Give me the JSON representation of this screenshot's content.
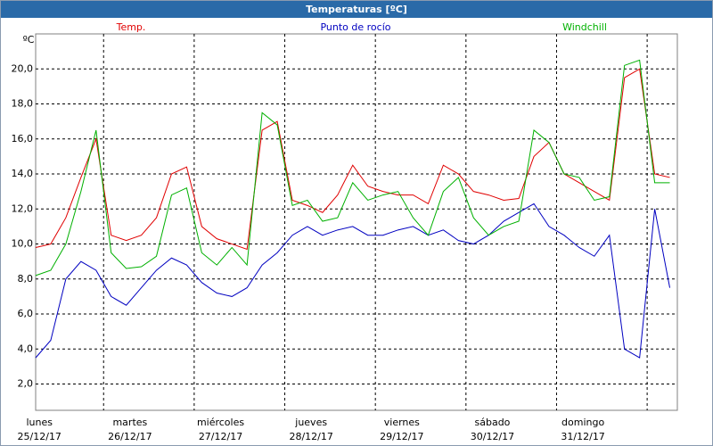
{
  "chart_data": {
    "type": "line",
    "title": "Temperaturas [ºC]",
    "y_unit": "ºC",
    "x": [
      0,
      4,
      8,
      12,
      16,
      20,
      24,
      28,
      32,
      36,
      40,
      44,
      48,
      52,
      56,
      60,
      64,
      68,
      72,
      76,
      80,
      84,
      88,
      92,
      96,
      100,
      104,
      108,
      112,
      116,
      120,
      124,
      128,
      132,
      136,
      140,
      144,
      148,
      152,
      156,
      160,
      164,
      168
    ],
    "xlim": [
      0,
      170
    ],
    "xticks": [
      {
        "value": 1,
        "label": "lunes"
      },
      {
        "value": 25,
        "label": "martes"
      },
      {
        "value": 49,
        "label": "miércoles"
      },
      {
        "value": 73,
        "label": "jueves"
      },
      {
        "value": 97,
        "label": "viernes"
      },
      {
        "value": 121,
        "label": "sábado"
      },
      {
        "value": 145,
        "label": "domingo"
      }
    ],
    "xtick_dates": [
      "25/12/17",
      "26/12/17",
      "27/12/17",
      "28/12/17",
      "29/12/17",
      "30/12/17",
      "31/12/17"
    ],
    "xgrid": [
      18,
      42,
      66,
      90,
      114,
      138,
      162
    ],
    "ylim": [
      0.5,
      22
    ],
    "yticks": [
      {
        "value": 2,
        "label": "2,0"
      },
      {
        "value": 4,
        "label": "4,0"
      },
      {
        "value": 6,
        "label": "6,0"
      },
      {
        "value": 8,
        "label": "8,0"
      },
      {
        "value": 10,
        "label": "10,0"
      },
      {
        "value": 12,
        "label": "12,0"
      },
      {
        "value": 14,
        "label": "14,0"
      },
      {
        "value": 16,
        "label": "16,0"
      },
      {
        "value": 18,
        "label": "18,0"
      },
      {
        "value": 20,
        "label": "20,0"
      }
    ],
    "grid": true,
    "series": [
      {
        "name": "Temp.",
        "color": "#e00000",
        "values": [
          9.8,
          10.0,
          11.5,
          13.8,
          16.0,
          10.5,
          10.2,
          10.5,
          11.5,
          14.0,
          14.4,
          11.0,
          10.3,
          10.0,
          9.7,
          16.5,
          17.0,
          12.5,
          12.2,
          11.8,
          12.8,
          14.5,
          13.3,
          13.0,
          12.8,
          12.8,
          12.3,
          14.5,
          14.0,
          13.0,
          12.8,
          12.5,
          12.6,
          15.0,
          15.8,
          14.0,
          13.5,
          13.0,
          12.5,
          19.5,
          20.0,
          14.0,
          13.8
        ]
      },
      {
        "name": "Punto de rocío",
        "color": "#0000c0",
        "values": [
          3.5,
          4.5,
          8.0,
          9.0,
          8.5,
          7.0,
          6.5,
          7.5,
          8.5,
          9.2,
          8.8,
          7.8,
          7.2,
          7.0,
          7.5,
          8.8,
          9.5,
          10.5,
          11.0,
          10.5,
          10.8,
          11.0,
          10.5,
          10.5,
          10.8,
          11.0,
          10.5,
          10.8,
          10.2,
          10.0,
          10.5,
          11.3,
          11.8,
          12.3,
          11.0,
          10.5,
          9.8,
          9.3,
          10.5,
          4.0,
          3.5,
          12.0,
          7.5
        ]
      },
      {
        "name": "Windchill",
        "color": "#00b000",
        "values": [
          8.2,
          8.5,
          10.0,
          13.0,
          16.5,
          9.5,
          8.6,
          8.7,
          9.3,
          12.8,
          13.2,
          9.5,
          8.8,
          9.8,
          8.8,
          17.5,
          16.8,
          12.2,
          12.5,
          11.3,
          11.5,
          13.5,
          12.5,
          12.8,
          13.0,
          11.5,
          10.5,
          13.0,
          13.8,
          11.5,
          10.5,
          11.0,
          11.3,
          16.5,
          15.8,
          14.0,
          13.8,
          12.5,
          12.7,
          20.2,
          20.5,
          13.5,
          13.5
        ]
      }
    ]
  }
}
